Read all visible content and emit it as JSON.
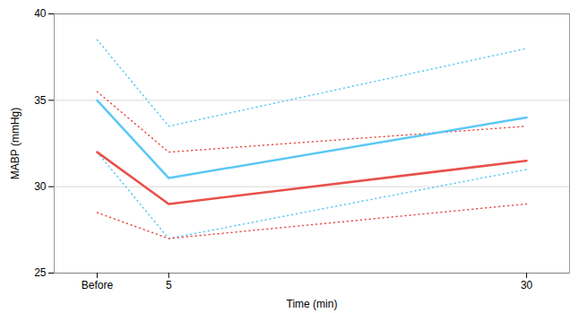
{
  "chart_data": {
    "type": "line",
    "x": [
      0,
      5,
      30
    ],
    "xlabel": "Time (min)",
    "ylabel": "MABP (mmHg)",
    "xlim": [
      -3,
      33
    ],
    "xticks": [
      {
        "value": 0,
        "label": "Before"
      },
      5,
      30
    ],
    "ylim": [
      25,
      40
    ],
    "yticks": [
      25,
      30,
      35,
      40
    ],
    "grid": true,
    "series": [
      {
        "color": "#5BC8F5",
        "line_style": "dotted",
        "values": [
          38.5,
          33.5,
          38.0
        ]
      },
      {
        "color": "#5BC8F5",
        "line_style": "dotted",
        "values": [
          32.0,
          27.0,
          31.0
        ]
      },
      {
        "color": "#E8504A",
        "line_style": "dotted",
        "values": [
          35.5,
          32.0,
          33.5
        ]
      },
      {
        "color": "#E8504A",
        "line_style": "dotted",
        "values": [
          28.5,
          27.0,
          29.0
        ]
      },
      {
        "color": "#5BC8F5",
        "line_style": "solid",
        "values": [
          35.0,
          30.5,
          34.0
        ]
      },
      {
        "color": "#E8504A",
        "line_style": "solid",
        "values": [
          32.0,
          29.0,
          31.5
        ]
      }
    ]
  }
}
